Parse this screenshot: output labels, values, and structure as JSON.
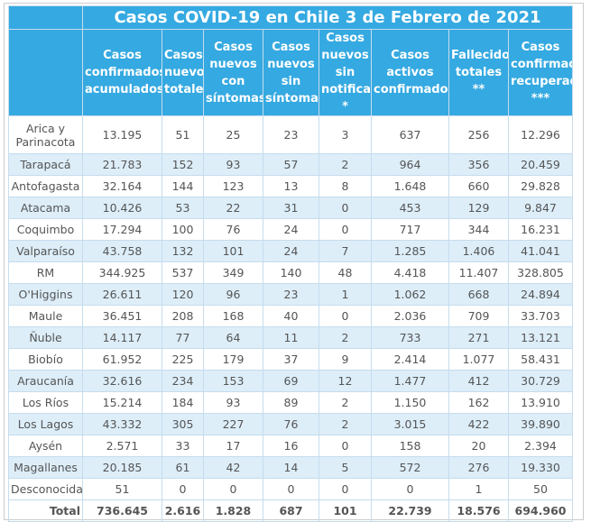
{
  "table": {
    "title": "Casos COVID-19 en Chile 3 de Febrero de 2021",
    "columns": [
      "Casos confirmados acumulados",
      "Casos nuevos totales",
      "Casos nuevos con síntomas",
      "Casos nuevos sin síntomas",
      "Casos nuevos sin notificar *",
      "Casos activos confirmados",
      "Fallecidos totales **",
      "Casos confirmados recuperados ***"
    ],
    "rows": [
      [
        "Arica y Parinacota",
        "13.195",
        "51",
        "25",
        "23",
        "3",
        "637",
        "256",
        "12.296"
      ],
      [
        "Tarapacá",
        "21.783",
        "152",
        "93",
        "57",
        "2",
        "964",
        "356",
        "20.459"
      ],
      [
        "Antofagasta",
        "32.164",
        "144",
        "123",
        "13",
        "8",
        "1.648",
        "660",
        "29.828"
      ],
      [
        "Atacama",
        "10.426",
        "53",
        "22",
        "31",
        "0",
        "453",
        "129",
        "9.847"
      ],
      [
        "Coquimbo",
        "17.294",
        "100",
        "76",
        "24",
        "0",
        "717",
        "344",
        "16.231"
      ],
      [
        "Valparaíso",
        "43.758",
        "132",
        "101",
        "24",
        "7",
        "1.285",
        "1.406",
        "41.041"
      ],
      [
        "RM",
        "344.925",
        "537",
        "349",
        "140",
        "48",
        "4.418",
        "11.407",
        "328.805"
      ],
      [
        "O'Higgins",
        "26.611",
        "120",
        "96",
        "23",
        "1",
        "1.062",
        "668",
        "24.894"
      ],
      [
        "Maule",
        "36.451",
        "208",
        "168",
        "40",
        "0",
        "2.036",
        "709",
        "33.703"
      ],
      [
        "Ñuble",
        "14.117",
        "77",
        "64",
        "11",
        "2",
        "733",
        "271",
        "13.121"
      ],
      [
        "Biobío",
        "61.952",
        "225",
        "179",
        "37",
        "9",
        "2.414",
        "1.077",
        "58.431"
      ],
      [
        "Araucanía",
        "32.616",
        "234",
        "153",
        "69",
        "12",
        "1.477",
        "412",
        "30.729"
      ],
      [
        "Los Ríos",
        "15.214",
        "184",
        "93",
        "89",
        "2",
        "1.150",
        "162",
        "13.910"
      ],
      [
        "Los Lagos",
        "43.332",
        "305",
        "227",
        "76",
        "2",
        "3.015",
        "422",
        "39.890"
      ],
      [
        "Aysén",
        "2.571",
        "33",
        "17",
        "16",
        "0",
        "158",
        "20",
        "2.394"
      ],
      [
        "Magallanes",
        "20.185",
        "61",
        "42",
        "14",
        "5",
        "572",
        "276",
        "19.330"
      ],
      [
        "Desconocida",
        "51",
        "0",
        "0",
        "0",
        "0",
        "0",
        "1",
        "50"
      ]
    ],
    "total": [
      "Total",
      "736.645",
      "2.616",
      "1.828",
      "687",
      "101",
      "22.739",
      "18.576",
      "694.960"
    ]
  }
}
